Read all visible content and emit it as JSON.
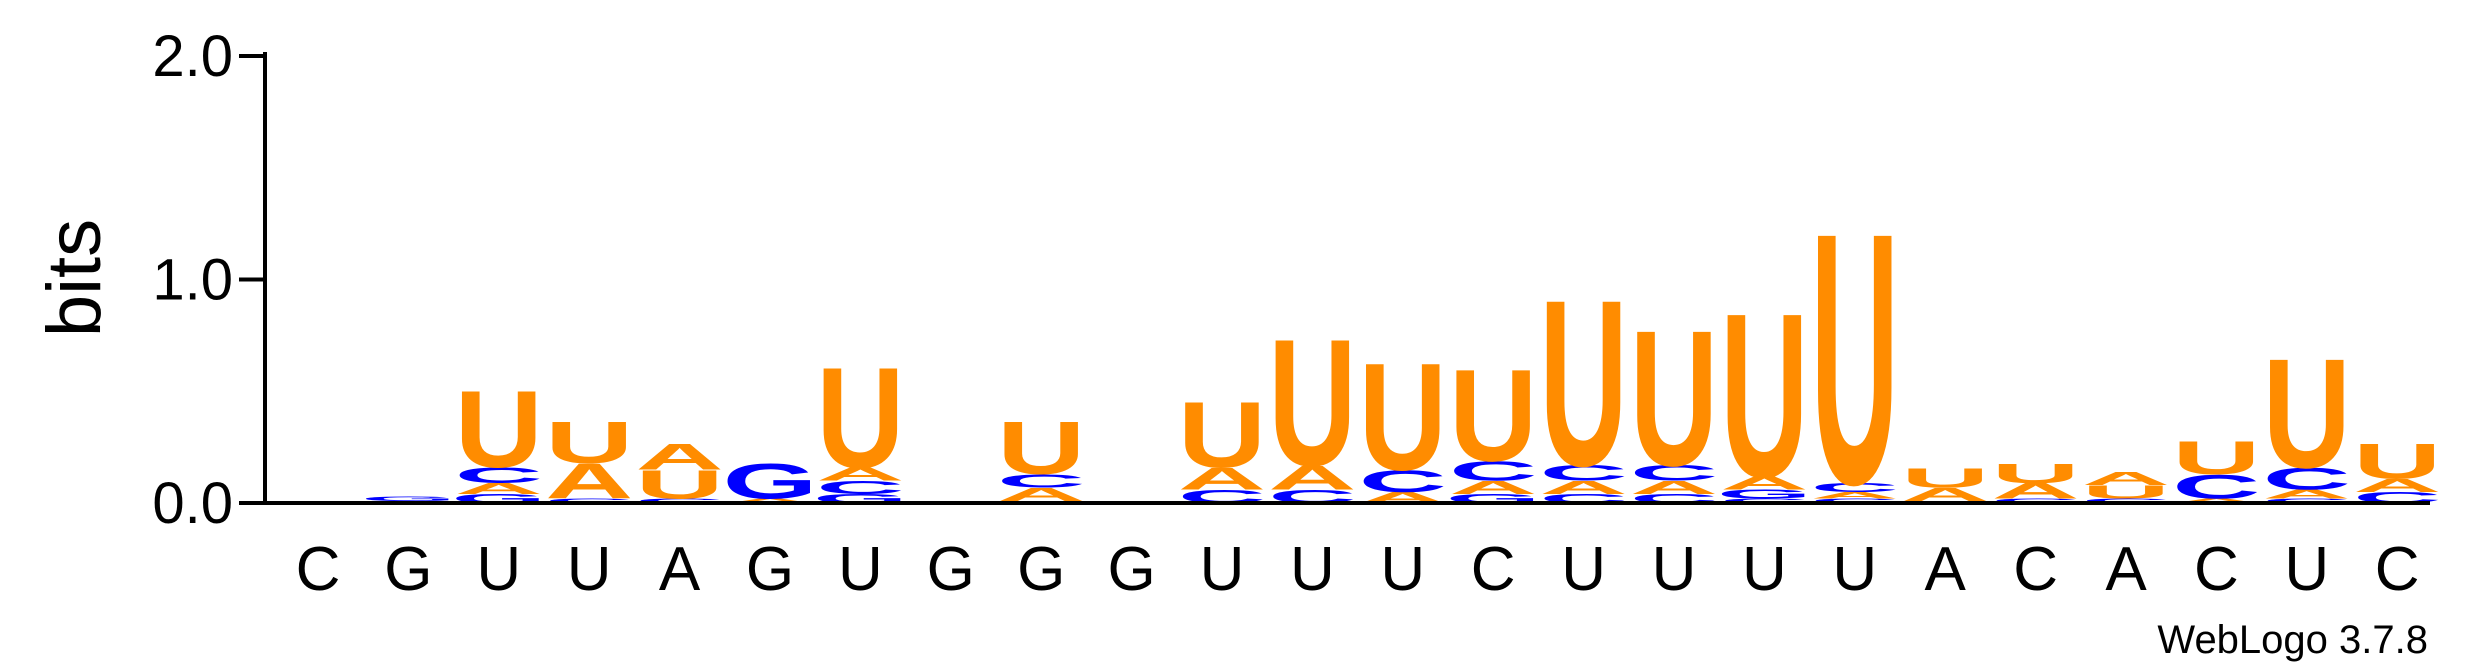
{
  "chart_data": {
    "type": "sequence-logo",
    "ylabel": "bits",
    "ylim": [
      0,
      2.0
    ],
    "yticks": [
      "0.0",
      "1.0",
      "2.0"
    ],
    "alphabet": [
      "A",
      "C",
      "G",
      "U"
    ],
    "colors": {
      "A": "#ff8c00",
      "C": "#0000ff",
      "G": "#0000ff",
      "U": "#ff8c00"
    },
    "credit": "WebLogo 3.7.8",
    "positions": [
      {
        "label": "C",
        "stack": []
      },
      {
        "label": "G",
        "stack": [
          {
            "base": "A",
            "height": 0.01
          },
          {
            "base": "G",
            "height": 0.02
          }
        ]
      },
      {
        "label": "U",
        "stack": [
          {
            "base": "G",
            "height": 0.04
          },
          {
            "base": "A",
            "height": 0.05
          },
          {
            "base": "C",
            "height": 0.07
          },
          {
            "base": "U",
            "height": 0.35
          }
        ]
      },
      {
        "label": "U",
        "stack": [
          {
            "base": "C",
            "height": 0.02
          },
          {
            "base": "A",
            "height": 0.16
          },
          {
            "base": "U",
            "height": 0.19
          }
        ]
      },
      {
        "label": "A",
        "stack": [
          {
            "base": "C",
            "height": 0.02
          },
          {
            "base": "U",
            "height": 0.13
          },
          {
            "base": "A",
            "height": 0.12
          }
        ]
      },
      {
        "label": "G",
        "stack": [
          {
            "base": "A",
            "height": 0.02
          },
          {
            "base": "G",
            "height": 0.16
          }
        ]
      },
      {
        "label": "U",
        "stack": [
          {
            "base": "G",
            "height": 0.04
          },
          {
            "base": "C",
            "height": 0.06
          },
          {
            "base": "A",
            "height": 0.06
          },
          {
            "base": "U",
            "height": 0.46
          }
        ]
      },
      {
        "label": "G",
        "stack": []
      },
      {
        "label": "G",
        "stack": [
          {
            "base": "C",
            "height": 0.01
          },
          {
            "base": "A",
            "height": 0.06
          },
          {
            "base": "C",
            "height": 0.06
          },
          {
            "base": "U",
            "height": 0.24
          }
        ]
      },
      {
        "label": "G",
        "stack": []
      },
      {
        "label": "U",
        "stack": [
          {
            "base": "C",
            "height": 0.06
          },
          {
            "base": "A",
            "height": 0.1
          },
          {
            "base": "U",
            "height": 0.3
          }
        ]
      },
      {
        "label": "U",
        "stack": [
          {
            "base": "C",
            "height": 0.06
          },
          {
            "base": "A",
            "height": 0.11
          },
          {
            "base": "U",
            "height": 0.58
          }
        ]
      },
      {
        "label": "U",
        "stack": [
          {
            "base": "A",
            "height": 0.05
          },
          {
            "base": "C",
            "height": 0.1
          },
          {
            "base": "U",
            "height": 0.49
          }
        ]
      },
      {
        "label": "C",
        "stack": [
          {
            "base": "G",
            "height": 0.04
          },
          {
            "base": "A",
            "height": 0.06
          },
          {
            "base": "C",
            "height": 0.09
          },
          {
            "base": "U",
            "height": 0.42
          }
        ]
      },
      {
        "label": "U",
        "stack": [
          {
            "base": "C",
            "height": 0.04
          },
          {
            "base": "A",
            "height": 0.06
          },
          {
            "base": "C",
            "height": 0.07
          },
          {
            "base": "U",
            "height": 0.76
          }
        ]
      },
      {
        "label": "U",
        "stack": [
          {
            "base": "C",
            "height": 0.04
          },
          {
            "base": "A",
            "height": 0.06
          },
          {
            "base": "C",
            "height": 0.07
          },
          {
            "base": "U",
            "height": 0.62
          }
        ]
      },
      {
        "label": "U",
        "stack": [
          {
            "base": "C",
            "height": 0.02
          },
          {
            "base": "G",
            "height": 0.04
          },
          {
            "base": "A",
            "height": 0.06
          },
          {
            "base": "U",
            "height": 0.75
          }
        ]
      },
      {
        "label": "U",
        "stack": [
          {
            "base": "C",
            "height": 0.02
          },
          {
            "base": "A",
            "height": 0.03
          },
          {
            "base": "C",
            "height": 0.04
          },
          {
            "base": "U",
            "height": 1.15
          }
        ]
      },
      {
        "label": "A",
        "stack": [
          {
            "base": "C",
            "height": 0.01
          },
          {
            "base": "A",
            "height": 0.06
          },
          {
            "base": "U",
            "height": 0.09
          }
        ]
      },
      {
        "label": "C",
        "stack": [
          {
            "base": "C",
            "height": 0.02
          },
          {
            "base": "A",
            "height": 0.07
          },
          {
            "base": "U",
            "height": 0.09
          }
        ]
      },
      {
        "label": "A",
        "stack": [
          {
            "base": "C",
            "height": 0.02
          },
          {
            "base": "U",
            "height": 0.06
          },
          {
            "base": "A",
            "height": 0.06
          }
        ]
      },
      {
        "label": "C",
        "stack": [
          {
            "base": "A",
            "height": 0.02
          },
          {
            "base": "C",
            "height": 0.11
          },
          {
            "base": "U",
            "height": 0.15
          }
        ]
      },
      {
        "label": "U",
        "stack": [
          {
            "base": "C",
            "height": 0.02
          },
          {
            "base": "A",
            "height": 0.04
          },
          {
            "base": "C",
            "height": 0.1
          },
          {
            "base": "U",
            "height": 0.5
          }
        ]
      },
      {
        "label": "C",
        "stack": [
          {
            "base": "C",
            "height": 0.05
          },
          {
            "base": "A",
            "height": 0.06
          },
          {
            "base": "U",
            "height": 0.16
          }
        ]
      }
    ]
  }
}
